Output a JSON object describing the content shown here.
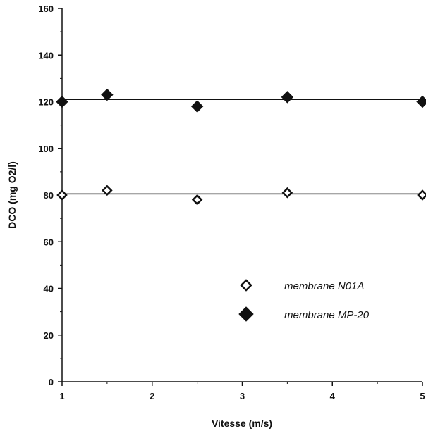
{
  "chart_data": {
    "type": "scatter",
    "xlabel": "Vitesse  (m/s)",
    "ylabel": "DCO (mg O2/l)",
    "xlim": [
      1,
      5
    ],
    "ylim": [
      0,
      160
    ],
    "x_ticks": [
      "1",
      "2",
      "3",
      "4",
      "5"
    ],
    "y_ticks": [
      "0",
      "20",
      "40",
      "60",
      "80",
      "100",
      "120",
      "140",
      "160"
    ],
    "grid": false,
    "legend_position": "bottom-right",
    "series": [
      {
        "name": "membrane N01A",
        "marker": "open-diamond",
        "x": [
          1,
          1.5,
          2.5,
          3.5,
          5
        ],
        "y": [
          80,
          82,
          78,
          81,
          80
        ],
        "fit_line": 80.5
      },
      {
        "name": "membrane MP-20",
        "marker": "filled-diamond",
        "x": [
          1,
          1.5,
          2.5,
          3.5,
          5
        ],
        "y": [
          120,
          123,
          118,
          122,
          120
        ],
        "fit_line": 121
      }
    ],
    "colors": {
      "ink": "#111111",
      "background": "#ffffff"
    }
  }
}
